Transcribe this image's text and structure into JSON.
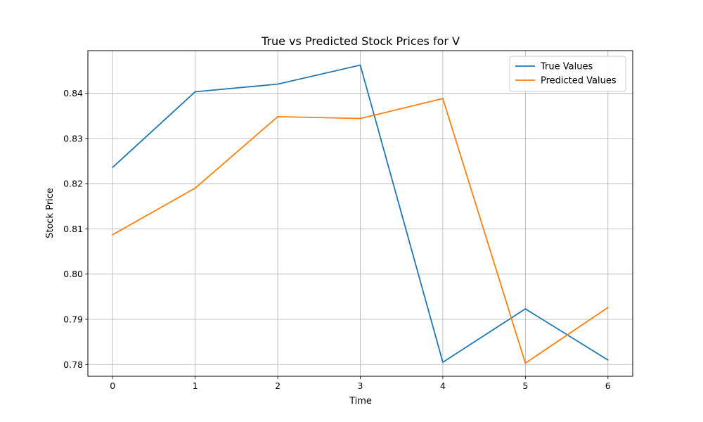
{
  "chart_data": {
    "type": "line",
    "title": "True vs Predicted Stock Prices for V",
    "xlabel": "Time",
    "ylabel": "Stock Price",
    "x": [
      0,
      1,
      2,
      3,
      4,
      5,
      6
    ],
    "x_ticks": [
      "0",
      "1",
      "2",
      "3",
      "4",
      "5",
      "6"
    ],
    "y_ticks": [
      "0.78",
      "0.79",
      "0.80",
      "0.81",
      "0.82",
      "0.83",
      "0.84"
    ],
    "xlim": [
      -0.3,
      6.3
    ],
    "ylim": [
      0.7774,
      0.8494
    ],
    "grid": true,
    "legend_position": "top-right",
    "series": [
      {
        "name": "True Values",
        "color": "#1f77b4",
        "values": [
          0.8236,
          0.8403,
          0.842,
          0.8462,
          0.7805,
          0.7923,
          0.781
        ]
      },
      {
        "name": "Predicted Values",
        "color": "#ff7f0e",
        "values": [
          0.8087,
          0.819,
          0.8348,
          0.8344,
          0.8388,
          0.7803,
          0.7926
        ]
      }
    ]
  }
}
